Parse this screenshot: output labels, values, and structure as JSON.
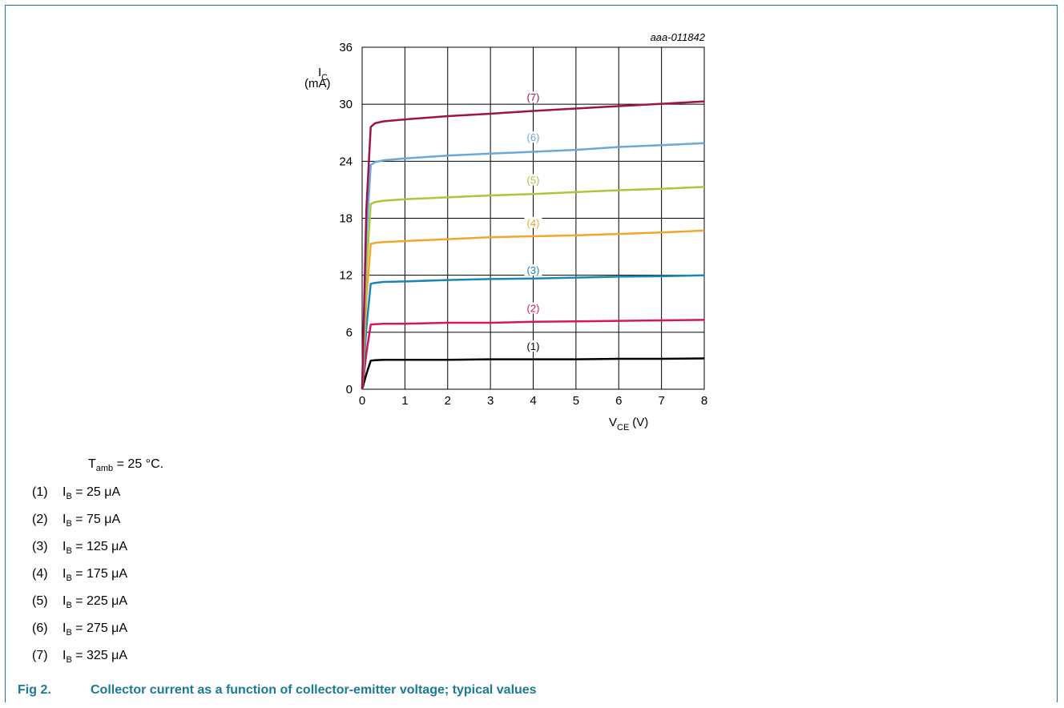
{
  "chart_data": {
    "type": "line",
    "figure_id": "aaa-011842",
    "x": [
      0,
      0.1,
      0.2,
      0.3,
      0.5,
      1,
      2,
      3,
      4,
      5,
      6,
      7,
      8
    ],
    "xlim": [
      0,
      8
    ],
    "ylim": [
      0,
      36
    ],
    "xticks": [
      "0",
      "1",
      "2",
      "3",
      "4",
      "5",
      "6",
      "7",
      "8"
    ],
    "yticks": [
      "0",
      "6",
      "12",
      "18",
      "24",
      "30",
      "36"
    ],
    "xlabel": {
      "main": "V",
      "sub": "CE",
      "unit": "(V)"
    },
    "ylabel": {
      "main": "I",
      "sub": "C",
      "unit": "(mA)"
    },
    "grid": true,
    "series": [
      {
        "name": "(1)",
        "color": "#000000",
        "label_x": 4,
        "label_y": 4.3,
        "values": [
          0,
          1.6,
          3.0,
          3.05,
          3.1,
          3.1,
          3.1,
          3.15,
          3.15,
          3.15,
          3.2,
          3.2,
          3.25
        ]
      },
      {
        "name": "(2)",
        "color": "#d6145f",
        "label_x": 4,
        "label_y": 8.3,
        "values": [
          0,
          3.8,
          6.8,
          6.85,
          6.9,
          6.9,
          7.0,
          7.0,
          7.1,
          7.15,
          7.2,
          7.25,
          7.3
        ]
      },
      {
        "name": "(3)",
        "color": "#1a86b8",
        "label_x": 4,
        "label_y": 12.3,
        "values": [
          0,
          6.5,
          11.1,
          11.2,
          11.3,
          11.35,
          11.5,
          11.6,
          11.65,
          11.75,
          11.85,
          11.9,
          12.0
        ]
      },
      {
        "name": "(4)",
        "color": "#f0a82a",
        "label_x": 4,
        "label_y": 17.3,
        "values": [
          0,
          9.5,
          15.3,
          15.4,
          15.5,
          15.6,
          15.8,
          16.0,
          16.1,
          16.2,
          16.35,
          16.5,
          16.7
        ]
      },
      {
        "name": "(5)",
        "color": "#a8c83c",
        "label_x": 4,
        "label_y": 21.8,
        "values": [
          0,
          12.5,
          19.5,
          19.7,
          19.85,
          20.0,
          20.2,
          20.4,
          20.55,
          20.75,
          20.95,
          21.1,
          21.3
        ]
      },
      {
        "name": "(6)",
        "color": "#6aa8dc",
        "label_x": 4,
        "label_y": 26.3,
        "values": [
          0,
          16,
          23.6,
          23.9,
          24.1,
          24.3,
          24.6,
          24.8,
          25.0,
          25.2,
          25.5,
          25.7,
          25.9
        ]
      },
      {
        "name": "(7)",
        "color": "#a0124a",
        "label_x": 4,
        "label_y": 30.5,
        "values": [
          0,
          19,
          27.6,
          28.0,
          28.2,
          28.4,
          28.75,
          29.0,
          29.3,
          29.55,
          29.8,
          30.05,
          30.3
        ]
      }
    ]
  },
  "conditions": {
    "main": "T",
    "sub": "amb",
    "rest": " = 25 °C."
  },
  "notes": [
    {
      "num": "(1)",
      "main": "I",
      "sub": "B",
      "rest": " = 25 μA"
    },
    {
      "num": "(2)",
      "main": "I",
      "sub": "B",
      "rest": " = 75 μA"
    },
    {
      "num": "(3)",
      "main": "I",
      "sub": "B",
      "rest": " = 125 μA"
    },
    {
      "num": "(4)",
      "main": "I",
      "sub": "B",
      "rest": " = 175 μA"
    },
    {
      "num": "(5)",
      "main": "I",
      "sub": "B",
      "rest": " = 225 μA"
    },
    {
      "num": "(6)",
      "main": "I",
      "sub": "B",
      "rest": " = 275 μA"
    },
    {
      "num": "(7)",
      "main": "I",
      "sub": "B",
      "rest": " = 325 μA"
    }
  ],
  "caption": {
    "figure": "Fig 2.",
    "text": "Collector current as a function of collector-emitter voltage; typical values"
  }
}
